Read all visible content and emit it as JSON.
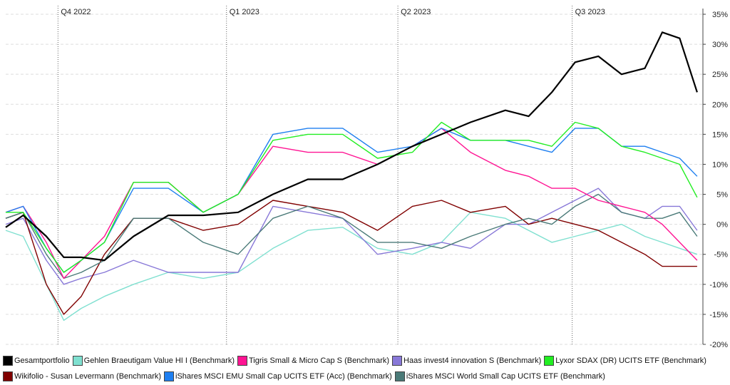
{
  "chart_data": {
    "type": "line",
    "quarters": [
      "Q4 2022",
      "Q1 2023",
      "Q2 2023",
      "Q3 2023"
    ],
    "y_ticks": [
      "35%",
      "30%",
      "25%",
      "20%",
      "15%",
      "10%",
      "5%",
      "0%",
      "-5%",
      "-10%",
      "-15%",
      "-20%"
    ],
    "ylim": [
      -20,
      35
    ],
    "x_range_months": [
      0,
      12
    ],
    "grid": "horizontal dashed; vertical dotted quarter separators",
    "legend_position": "bottom",
    "series": [
      {
        "name": "Gesamtportfolio",
        "color": "#000000",
        "x": [
          0,
          0.3,
          0.7,
          1.0,
          1.3,
          1.7,
          2.2,
          2.8,
          3.4,
          4.0,
          4.6,
          5.2,
          5.8,
          6.4,
          7.0,
          7.5,
          8.0,
          8.6,
          9.0,
          9.4,
          9.8,
          10.2,
          10.6,
          11.0,
          11.3,
          11.6,
          11.9
        ],
        "y": [
          -0.5,
          1.5,
          -2,
          -5.5,
          -5.5,
          -6,
          -2,
          1.5,
          1.5,
          2,
          5,
          7.5,
          7.5,
          10,
          13,
          15,
          17,
          19,
          18,
          22,
          27,
          28,
          25,
          26,
          32,
          31,
          22
        ]
      },
      {
        "name": "Gehlen Braeutigam Value HI I (Benchmark)",
        "color": "#7fe0d0",
        "x": [
          0,
          0.3,
          0.7,
          1.0,
          1.3,
          1.7,
          2.2,
          2.8,
          3.4,
          4.0,
          4.6,
          5.2,
          5.8,
          6.4,
          7.0,
          7.5,
          8.0,
          8.6,
          9.0,
          9.4,
          9.8,
          10.2,
          10.6,
          11.0,
          11.3,
          11.6,
          11.9
        ],
        "y": [
          -1,
          -2,
          -10,
          -16,
          -14,
          -12,
          -10,
          -8,
          -9,
          -8,
          -4,
          -1,
          -0.5,
          -4,
          -5,
          -3,
          2,
          1,
          -1,
          -3,
          -2,
          -1,
          0,
          -2,
          -3,
          -4,
          -5
        ]
      },
      {
        "name": "Tigris Small & Micro Cap S (Benchmark)",
        "color": "#ff1493",
        "x": [
          0,
          0.3,
          0.7,
          1.0,
          1.3,
          1.7,
          2.2,
          2.8,
          3.4,
          4.0,
          4.6,
          5.2,
          5.8,
          6.4,
          7.0,
          7.5,
          8.0,
          8.6,
          9.0,
          9.4,
          9.8,
          10.2,
          10.6,
          11.0,
          11.3,
          11.6,
          11.9
        ],
        "y": [
          2,
          3,
          -3,
          -9,
          -6,
          -2,
          7,
          7,
          2,
          5,
          13,
          12,
          12,
          10,
          13,
          16,
          12,
          9,
          8,
          6,
          6,
          4,
          3,
          2,
          0,
          -3,
          -6
        ]
      },
      {
        "name": "Haas invest4 innovation S (Benchmark)",
        "color": "#8878d8",
        "x": [
          0,
          0.3,
          0.7,
          1.0,
          1.3,
          1.7,
          2.2,
          2.8,
          3.4,
          4.0,
          4.6,
          5.2,
          5.8,
          6.4,
          7.0,
          7.5,
          8.0,
          8.6,
          9.0,
          9.4,
          9.8,
          10.2,
          10.6,
          11.0,
          11.3,
          11.6,
          11.9
        ],
        "y": [
          0,
          1,
          -6,
          -10,
          -9,
          -8,
          -6,
          -8,
          -8,
          -8,
          3,
          2,
          1,
          -5,
          -4,
          -3,
          -4,
          0,
          0,
          2,
          4,
          6,
          2,
          1,
          3,
          3,
          -1
        ]
      },
      {
        "name": "Lyxor SDAX (DR) UCITS ETF (Benchmark)",
        "color": "#22ee22",
        "x": [
          0,
          0.3,
          0.7,
          1.0,
          1.3,
          1.7,
          2.2,
          2.8,
          3.4,
          4.0,
          4.6,
          5.2,
          5.8,
          6.4,
          7.0,
          7.5,
          8.0,
          8.6,
          9.0,
          9.4,
          9.8,
          10.2,
          10.6,
          11.0,
          11.3,
          11.6,
          11.9
        ],
        "y": [
          2,
          2,
          -4,
          -8,
          -6,
          -3,
          7,
          7,
          2,
          5,
          14,
          15,
          15,
          11,
          12,
          17,
          14,
          14,
          14,
          13,
          17,
          16,
          13,
          12,
          11,
          10,
          4.5
        ]
      },
      {
        "name": "Wikifolio - Susan Levermann (Benchmark)",
        "color": "#800000",
        "x": [
          0,
          0.3,
          0.7,
          1.0,
          1.3,
          1.7,
          2.2,
          2.8,
          3.4,
          4.0,
          4.6,
          5.2,
          5.8,
          6.4,
          7.0,
          7.5,
          8.0,
          8.6,
          9.0,
          9.4,
          9.8,
          10.2,
          10.6,
          11.0,
          11.3,
          11.6,
          11.9
        ],
        "y": [
          1,
          2,
          -10,
          -15,
          -12,
          -5,
          1,
          1,
          -1,
          0,
          4,
          3,
          2,
          -1,
          3,
          4,
          2,
          3,
          0,
          1,
          0,
          -1,
          -3,
          -5,
          -7,
          -7,
          -7
        ]
      },
      {
        "name": "iShares MSCI EMU Small Cap UCITS ETF (Acc) (Benchmark)",
        "color": "#1e7ff0",
        "x": [
          0,
          0.3,
          0.7,
          1.0,
          1.3,
          1.7,
          2.2,
          2.8,
          3.4,
          4.0,
          4.6,
          5.2,
          5.8,
          6.4,
          7.0,
          7.5,
          8.0,
          8.6,
          9.0,
          9.4,
          9.8,
          10.2,
          10.6,
          11.0,
          11.3,
          11.6,
          11.9
        ],
        "y": [
          2,
          3,
          -4,
          -8,
          -6,
          -3,
          6,
          6,
          2,
          5,
          15,
          16,
          16,
          12,
          13,
          16,
          14,
          14,
          13,
          12,
          16,
          16,
          13,
          13,
          12,
          11,
          8
        ]
      },
      {
        "name": "iShares MSCI World Small Cap UCITS ETF (Benchmark)",
        "color": "#4a7a78",
        "x": [
          0,
          0.3,
          0.7,
          1.0,
          1.3,
          1.7,
          2.2,
          2.8,
          3.4,
          4.0,
          4.6,
          5.2,
          5.8,
          6.4,
          7.0,
          7.5,
          8.0,
          8.6,
          9.0,
          9.4,
          9.8,
          10.2,
          10.6,
          11.0,
          11.3,
          11.6,
          11.9
        ],
        "y": [
          1,
          2,
          -5,
          -9,
          -8,
          -6,
          1,
          1,
          -3,
          -5,
          1,
          3,
          1,
          -3,
          -3,
          -4,
          -2,
          0,
          1,
          0,
          3,
          5,
          2,
          1,
          1,
          2,
          -2
        ]
      }
    ]
  }
}
